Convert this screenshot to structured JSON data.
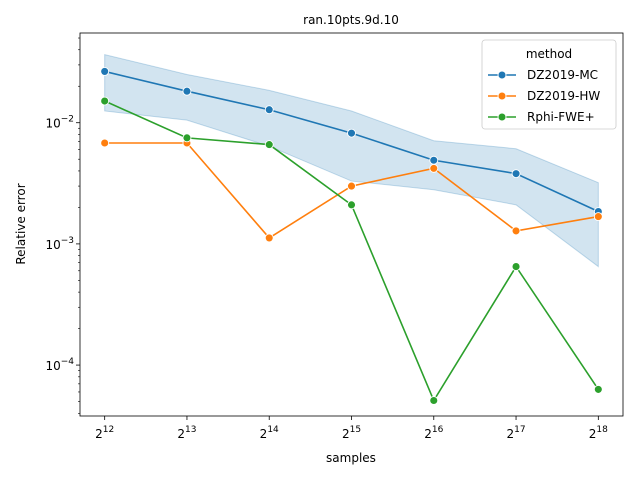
{
  "chart_data": {
    "type": "line",
    "title": "ran.10pts.9d.10",
    "xlabel": "samples",
    "ylabel": "Relative error",
    "yscale": "log",
    "ylim": [
      3.8e-05,
      0.055
    ],
    "x_ticks": [
      {
        "base": "2",
        "exp": "12",
        "value": 4096
      },
      {
        "base": "2",
        "exp": "13",
        "value": 8192
      },
      {
        "base": "2",
        "exp": "14",
        "value": 16384
      },
      {
        "base": "2",
        "exp": "15",
        "value": 32768
      },
      {
        "base": "2",
        "exp": "16",
        "value": 65536
      },
      {
        "base": "2",
        "exp": "17",
        "value": 131072
      },
      {
        "base": "2",
        "exp": "18",
        "value": 262144
      }
    ],
    "y_ticks": [
      {
        "base": "10",
        "exp": "−4",
        "value": 0.0001
      },
      {
        "base": "10",
        "exp": "−3",
        "value": 0.001
      },
      {
        "base": "10",
        "exp": "−2",
        "value": 0.01
      }
    ],
    "x": [
      4096,
      8192,
      16384,
      32768,
      65536,
      131072,
      262144
    ],
    "series": [
      {
        "name": "DZ2019-MC",
        "color": "#1f77b4",
        "values": [
          0.0265,
          0.0182,
          0.0128,
          0.0082,
          0.0049,
          0.0038,
          0.00185
        ],
        "band_upper": [
          0.0365,
          0.025,
          0.0185,
          0.0125,
          0.0071,
          0.0061,
          0.0032
        ],
        "band_lower": [
          0.0125,
          0.0105,
          0.0064,
          0.0033,
          0.0028,
          0.0021,
          0.00065
        ]
      },
      {
        "name": "DZ2019-HW",
        "color": "#ff7f0e",
        "values": [
          0.0068,
          0.0068,
          0.00112,
          0.003,
          0.0042,
          0.00128,
          0.00168
        ]
      },
      {
        "name": "Rphi-FWE+",
        "color": "#2ca02c",
        "values": [
          0.0151,
          0.0075,
          0.0066,
          0.0021,
          5.1e-05,
          0.00065,
          6.3e-05
        ]
      }
    ],
    "band_color": "#1f77b4",
    "legend": {
      "title": "method",
      "position": "top-right"
    },
    "grid": false
  }
}
